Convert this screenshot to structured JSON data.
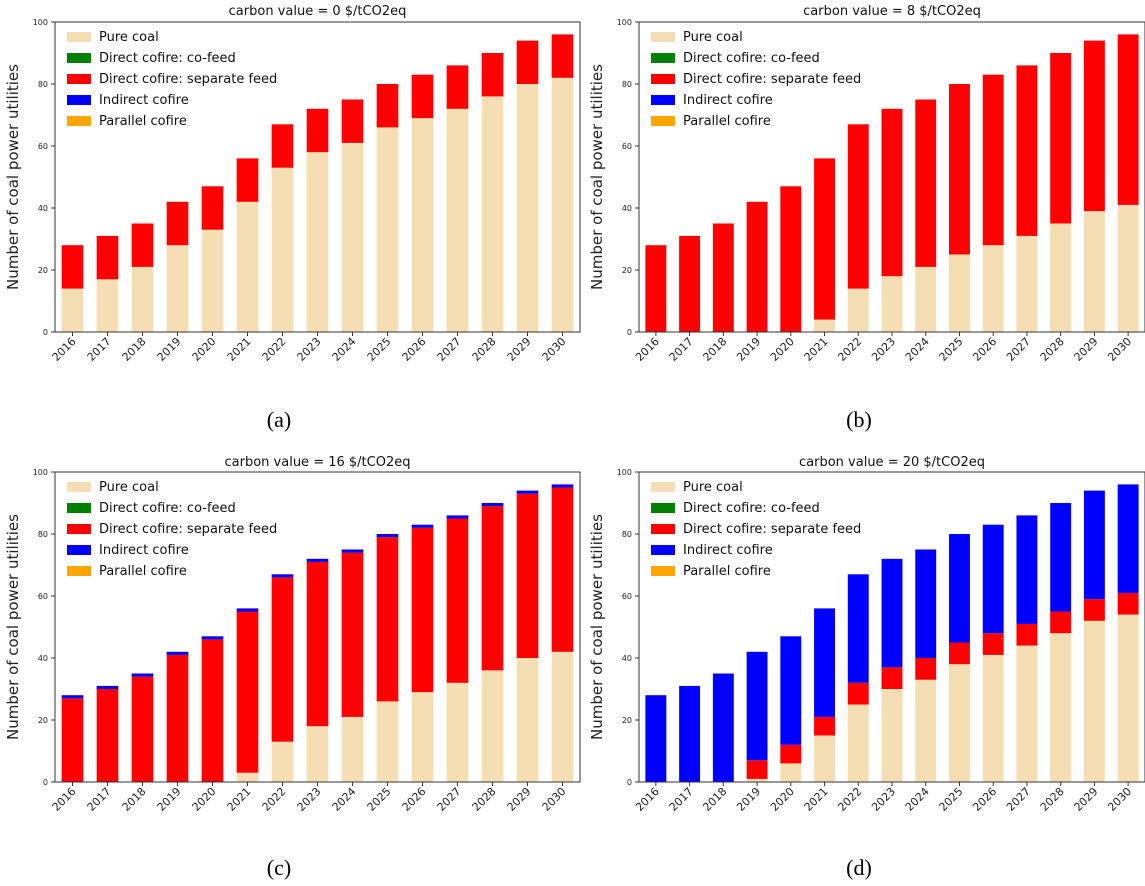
{
  "legend_entries": [
    {
      "label": "Pure coal",
      "color": "#f5deb3"
    },
    {
      "label": "Direct cofire: co-feed",
      "color": "#008000"
    },
    {
      "label": "Direct cofire: separate feed",
      "color": "#ff0000"
    },
    {
      "label": "Indirect cofire",
      "color": "#0000ff"
    },
    {
      "label": "Parallel cofire",
      "color": "#ffa500"
    }
  ],
  "captions": [
    "(a)",
    "(b)",
    "(c)",
    "(d)"
  ],
  "chart_data": [
    {
      "type": "bar",
      "stacked": true,
      "title": "carbon value = 0 $/tCO2eq",
      "xlabel": "",
      "ylabel": "Number of coal power utilities",
      "categories": [
        "2016",
        "2017",
        "2018",
        "2019",
        "2020",
        "2021",
        "2022",
        "2023",
        "2024",
        "2025",
        "2026",
        "2027",
        "2028",
        "2029",
        "2030"
      ],
      "ylim": [
        0,
        100
      ],
      "yticks": [
        0,
        20,
        40,
        60,
        80,
        100
      ],
      "legend_position": "upper-left",
      "grid": false,
      "series": [
        {
          "name": "Pure coal",
          "values": [
            14,
            17,
            21,
            28,
            33,
            42,
            53,
            58,
            61,
            66,
            69,
            72,
            76,
            80,
            82
          ]
        },
        {
          "name": "Direct cofire: co-feed",
          "values": [
            0,
            0,
            0,
            0,
            0,
            0,
            0,
            0,
            0,
            0,
            0,
            0,
            0,
            0,
            0
          ]
        },
        {
          "name": "Direct cofire: separate feed",
          "values": [
            14,
            14,
            14,
            14,
            14,
            14,
            14,
            14,
            14,
            14,
            14,
            14,
            14,
            14,
            14
          ]
        },
        {
          "name": "Indirect cofire",
          "values": [
            0,
            0,
            0,
            0,
            0,
            0,
            0,
            0,
            0,
            0,
            0,
            0,
            0,
            0,
            0
          ]
        },
        {
          "name": "Parallel cofire",
          "values": [
            0,
            0,
            0,
            0,
            0,
            0,
            0,
            0,
            0,
            0,
            0,
            0,
            0,
            0,
            0
          ]
        }
      ]
    },
    {
      "type": "bar",
      "stacked": true,
      "title": "carbon value = 8 $/tCO2eq",
      "xlabel": "",
      "ylabel": "Number of coal power utilities",
      "categories": [
        "2016",
        "2017",
        "2018",
        "2019",
        "2020",
        "2021",
        "2022",
        "2023",
        "2024",
        "2025",
        "2026",
        "2027",
        "2028",
        "2029",
        "2030"
      ],
      "ylim": [
        0,
        100
      ],
      "yticks": [
        0,
        20,
        40,
        60,
        80,
        100
      ],
      "legend_position": "upper-left",
      "grid": false,
      "series": [
        {
          "name": "Pure coal",
          "values": [
            0,
            0,
            0,
            0,
            0,
            4,
            14,
            18,
            21,
            25,
            28,
            31,
            35,
            39,
            41
          ]
        },
        {
          "name": "Direct cofire: co-feed",
          "values": [
            0,
            0,
            0,
            0,
            0,
            0,
            0,
            0,
            0,
            0,
            0,
            0,
            0,
            0,
            0
          ]
        },
        {
          "name": "Direct cofire: separate feed",
          "values": [
            28,
            31,
            35,
            42,
            47,
            52,
            53,
            54,
            54,
            55,
            55,
            55,
            55,
            55,
            55
          ]
        },
        {
          "name": "Indirect cofire",
          "values": [
            0,
            0,
            0,
            0,
            0,
            0,
            0,
            0,
            0,
            0,
            0,
            0,
            0,
            0,
            0
          ]
        },
        {
          "name": "Parallel cofire",
          "values": [
            0,
            0,
            0,
            0,
            0,
            0,
            0,
            0,
            0,
            0,
            0,
            0,
            0,
            0,
            0
          ]
        }
      ]
    },
    {
      "type": "bar",
      "stacked": true,
      "title": "carbon value = 16 $/tCO2eq",
      "xlabel": "",
      "ylabel": "Number of coal power utilities",
      "categories": [
        "2016",
        "2017",
        "2018",
        "2019",
        "2020",
        "2021",
        "2022",
        "2023",
        "2024",
        "2025",
        "2026",
        "2027",
        "2028",
        "2029",
        "2030"
      ],
      "ylim": [
        0,
        100
      ],
      "yticks": [
        0,
        20,
        40,
        60,
        80,
        100
      ],
      "legend_position": "upper-left",
      "grid": false,
      "series": [
        {
          "name": "Pure coal",
          "values": [
            0,
            0,
            0,
            0,
            0,
            3,
            13,
            18,
            21,
            26,
            29,
            32,
            36,
            40,
            42
          ]
        },
        {
          "name": "Direct cofire: co-feed",
          "values": [
            0,
            0,
            0,
            0,
            0,
            0,
            0,
            0,
            0,
            0,
            0,
            0,
            0,
            0,
            0
          ]
        },
        {
          "name": "Direct cofire: separate feed",
          "values": [
            27,
            30,
            34,
            41,
            46,
            52,
            53,
            53,
            53,
            53,
            53,
            53,
            53,
            53,
            53
          ]
        },
        {
          "name": "Indirect cofire",
          "values": [
            1,
            1,
            1,
            1,
            1,
            1,
            1,
            1,
            1,
            1,
            1,
            1,
            1,
            1,
            1
          ]
        },
        {
          "name": "Parallel cofire",
          "values": [
            0,
            0,
            0,
            0,
            0,
            0,
            0,
            0,
            0,
            0,
            0,
            0,
            0,
            0,
            0
          ]
        }
      ]
    },
    {
      "type": "bar",
      "stacked": true,
      "title": "carbon value = 20 $/tCO2eq",
      "xlabel": "",
      "ylabel": "Number of coal power utilities",
      "categories": [
        "2016",
        "2017",
        "2018",
        "2019",
        "2020",
        "2021",
        "2022",
        "2023",
        "2024",
        "2025",
        "2026",
        "2027",
        "2028",
        "2029",
        "2030"
      ],
      "ylim": [
        0,
        100
      ],
      "yticks": [
        0,
        20,
        40,
        60,
        80,
        100
      ],
      "legend_position": "upper-left",
      "grid": false,
      "series": [
        {
          "name": "Pure coal",
          "values": [
            0,
            0,
            0,
            1,
            6,
            15,
            25,
            30,
            33,
            38,
            41,
            44,
            48,
            52,
            54
          ]
        },
        {
          "name": "Direct cofire: co-feed",
          "values": [
            0,
            0,
            0,
            0,
            0,
            0,
            0,
            0,
            0,
            0,
            0,
            0,
            0,
            0,
            0
          ]
        },
        {
          "name": "Direct cofire: separate feed",
          "values": [
            0,
            0,
            0,
            6,
            6,
            6,
            7,
            7,
            7,
            7,
            7,
            7,
            7,
            7,
            7
          ]
        },
        {
          "name": "Indirect cofire",
          "values": [
            28,
            31,
            35,
            35,
            35,
            35,
            35,
            35,
            35,
            35,
            35,
            35,
            35,
            35,
            35
          ]
        },
        {
          "name": "Parallel cofire",
          "values": [
            0,
            0,
            0,
            0,
            0,
            0,
            0,
            0,
            0,
            0,
            0,
            0,
            0,
            0,
            0
          ]
        }
      ]
    }
  ]
}
